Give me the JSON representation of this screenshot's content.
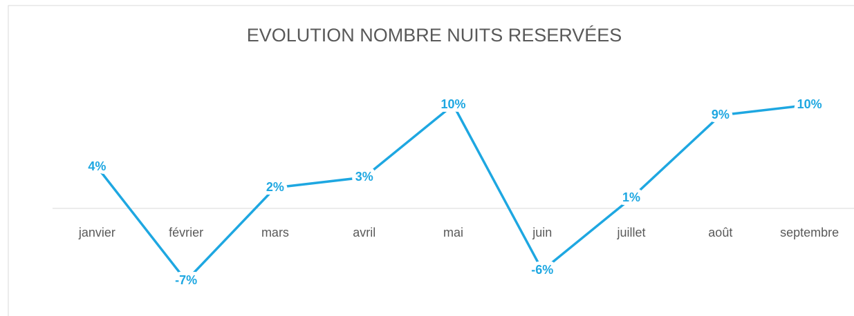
{
  "chart_data": {
    "type": "line",
    "title": "EVOLUTION NOMBRE NUITS RESERVÉES",
    "categories": [
      "janvier",
      "février",
      "mars",
      "avril",
      "mai",
      "juin",
      "juillet",
      "août",
      "septembre"
    ],
    "series": [
      {
        "color": "#1ea7e1",
        "values": [
          4,
          -7,
          2,
          3,
          10,
          -6,
          1,
          9,
          10
        ],
        "value_labels": [
          "4%",
          "-7%",
          "2%",
          "3%",
          "10%",
          "-6%",
          "1%",
          "9%",
          "10%"
        ]
      }
    ],
    "ylim": [
      -10,
      12
    ],
    "yticks": [
      0
    ]
  }
}
